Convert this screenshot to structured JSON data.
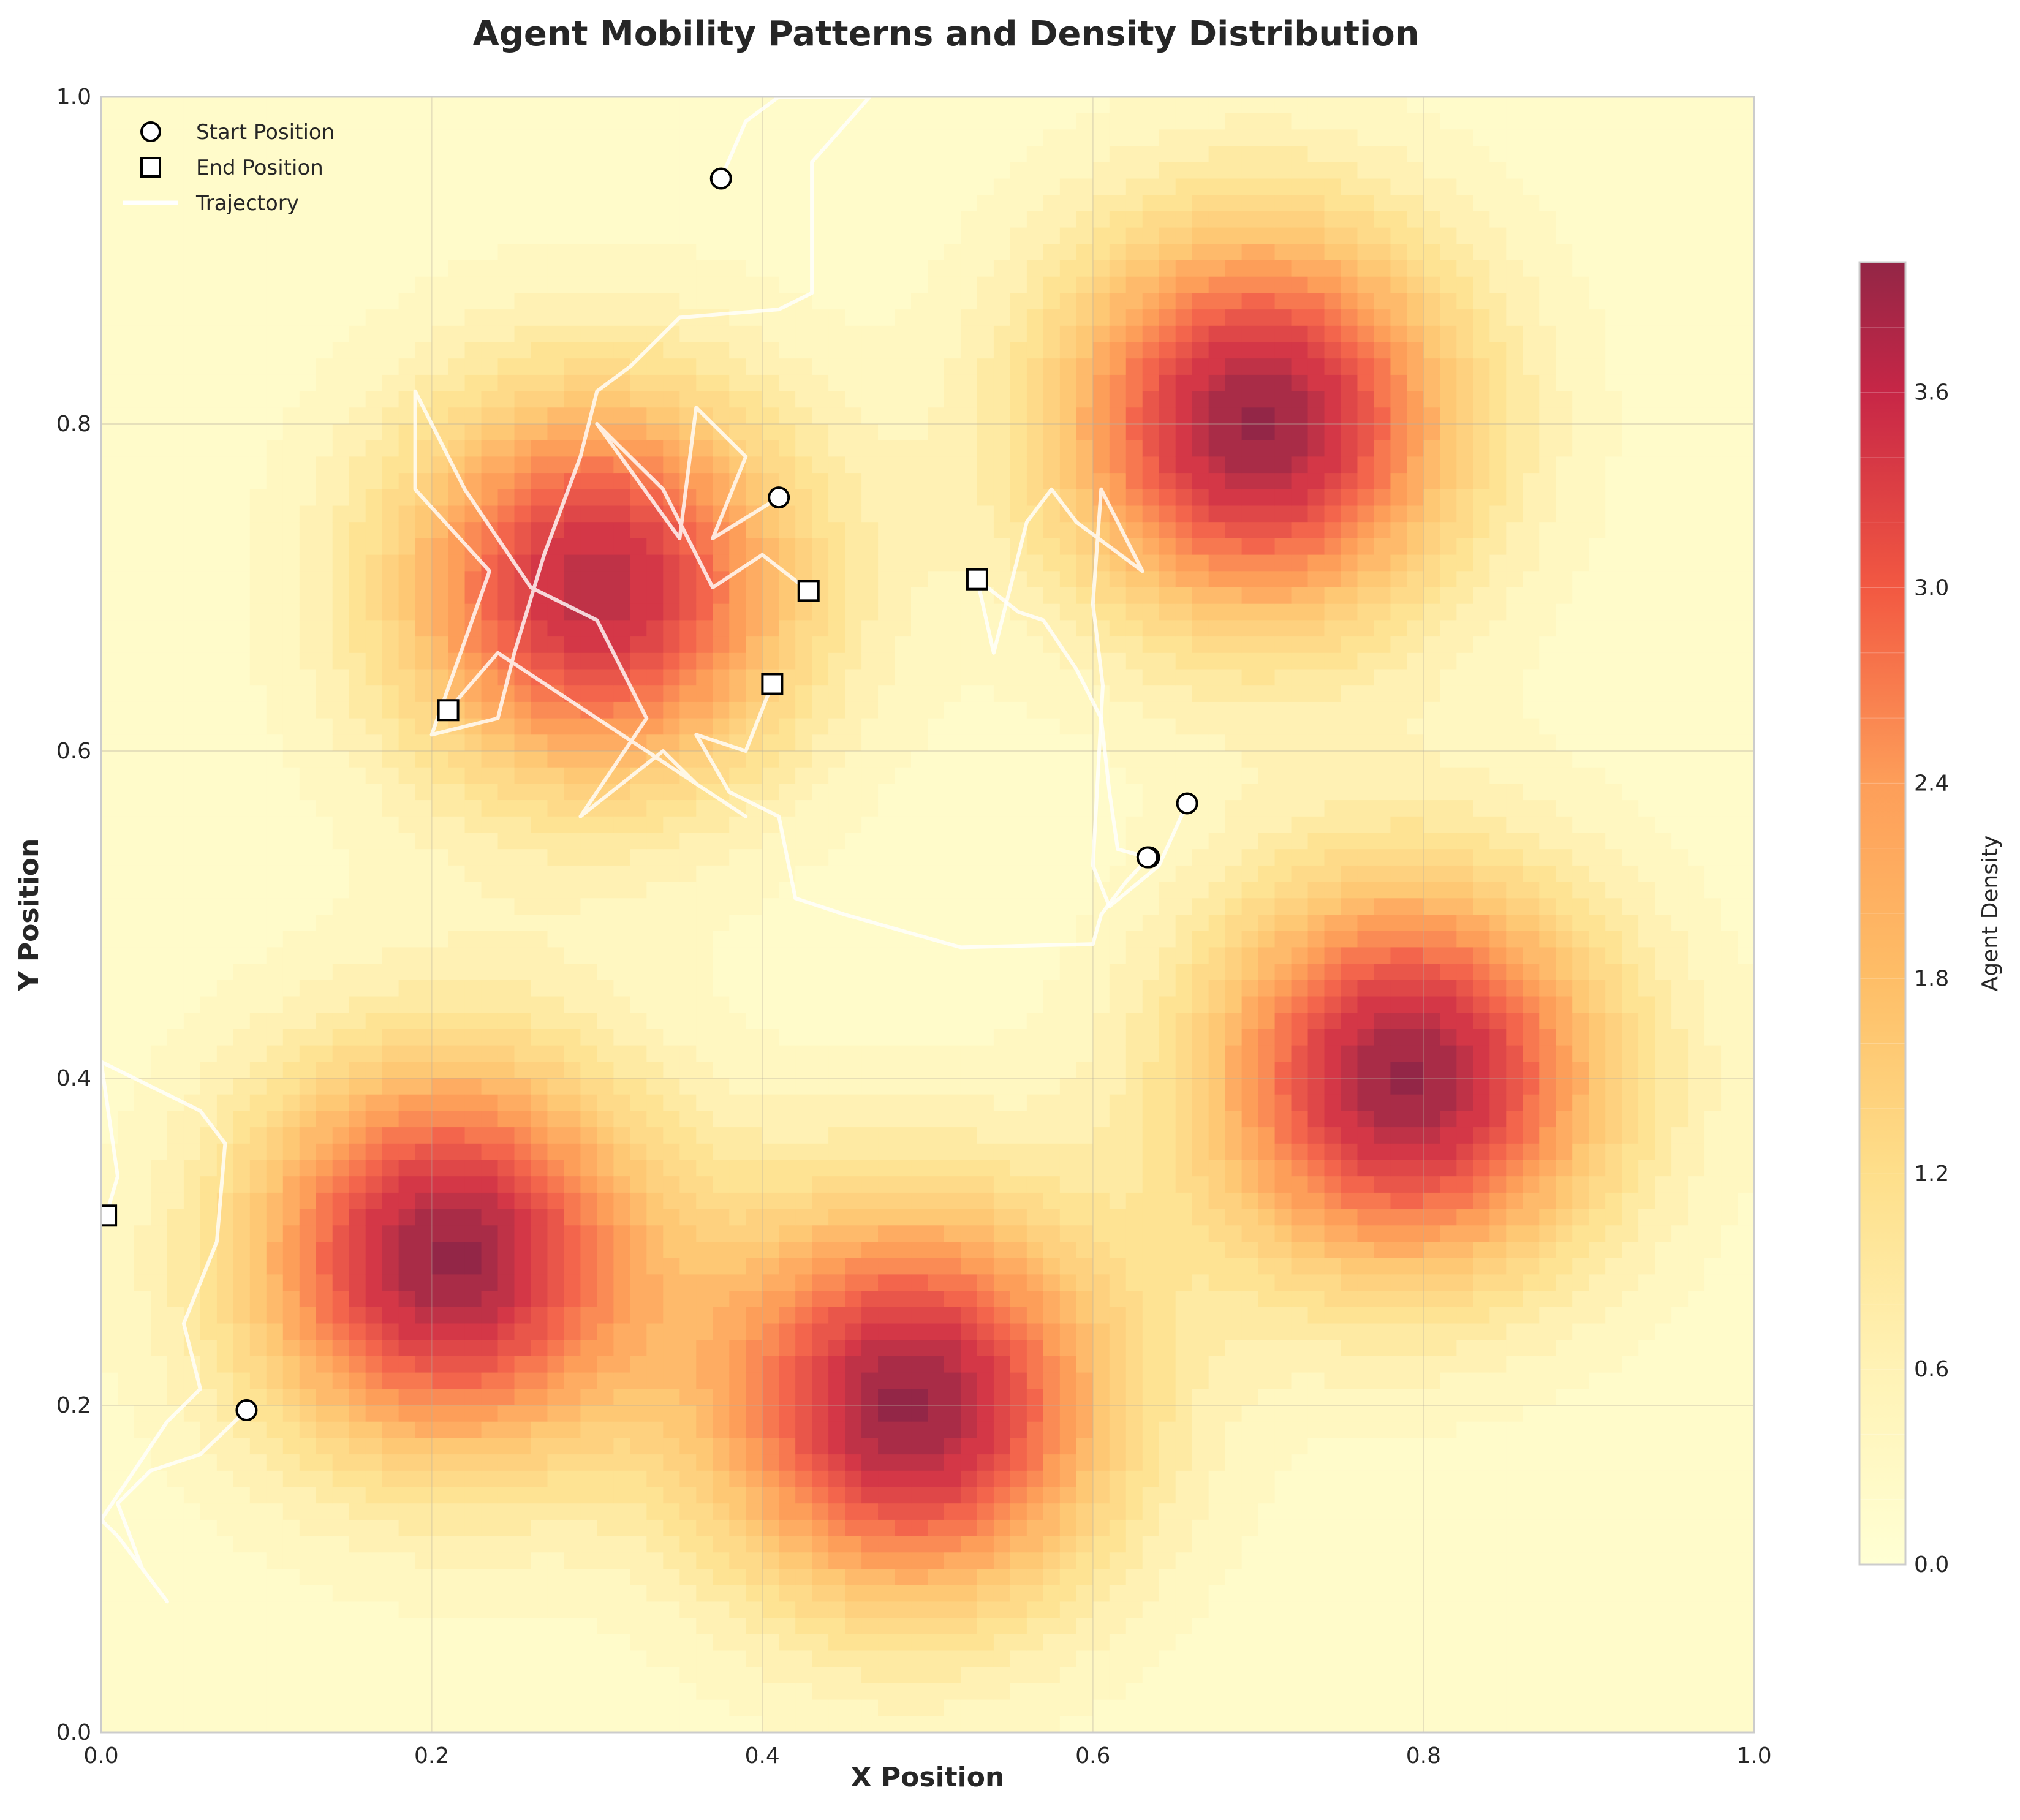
{
  "chart_data": {
    "type": "heatmap",
    "title": "Agent Mobility Patterns and Density Distribution",
    "xlabel": "X Position",
    "ylabel": "Y Position",
    "xlim": [
      0.0,
      1.0
    ],
    "ylim": [
      0.0,
      1.0
    ],
    "x_ticks": [
      0.0,
      0.2,
      0.4,
      0.6,
      0.8,
      1.0
    ],
    "y_ticks": [
      0.0,
      0.2,
      0.4,
      0.6,
      0.8,
      1.0
    ],
    "x_tick_labels": [
      "0.0",
      "0.2",
      "0.4",
      "0.6",
      "0.8",
      "1.0"
    ],
    "y_tick_labels": [
      "0.0",
      "0.2",
      "0.4",
      "0.6",
      "0.8",
      "1.0"
    ],
    "grid": true,
    "colormap": "YlOrRd",
    "density_peaks": [
      {
        "x": 0.3,
        "y": 0.7,
        "peak": 3.5
      },
      {
        "x": 0.7,
        "y": 0.8,
        "peak": 3.8
      },
      {
        "x": 0.21,
        "y": 0.29,
        "peak": 3.8
      },
      {
        "x": 0.49,
        "y": 0.2,
        "peak": 3.8
      },
      {
        "x": 0.79,
        "y": 0.4,
        "peak": 3.8
      }
    ],
    "colorbar": {
      "label": "Agent Density",
      "min": 0.0,
      "max": 4.0,
      "ticks": [
        0.0,
        0.6,
        1.2,
        1.8,
        2.4,
        3.0,
        3.6
      ],
      "tick_labels": [
        "0.0",
        "0.6",
        "1.2",
        "1.8",
        "2.4",
        "3.0",
        "3.6"
      ],
      "level_step": 0.2
    },
    "legend": {
      "placement": "top-left",
      "entries": [
        {
          "label": "Start Position",
          "marker": "circle"
        },
        {
          "label": "End Position",
          "marker": "square"
        },
        {
          "label": "Trajectory",
          "marker": "line"
        }
      ]
    },
    "trajectories": [
      {
        "start": {
          "x": 0.375,
          "y": 0.95
        },
        "end": {
          "x": 0.21,
          "y": 0.625
        },
        "points": [
          [
            0.375,
            0.95
          ],
          [
            0.39,
            0.985
          ],
          [
            0.41,
            1.0
          ],
          [
            0.465,
            1.0
          ],
          [
            0.43,
            0.96
          ],
          [
            0.43,
            0.88
          ],
          [
            0.41,
            0.87
          ],
          [
            0.35,
            0.865
          ],
          [
            0.32,
            0.835
          ],
          [
            0.3,
            0.82
          ],
          [
            0.29,
            0.78
          ],
          [
            0.268,
            0.72
          ],
          [
            0.25,
            0.66
          ],
          [
            0.24,
            0.62
          ],
          [
            0.2,
            0.61
          ],
          [
            0.235,
            0.71
          ],
          [
            0.19,
            0.76
          ],
          [
            0.19,
            0.82
          ],
          [
            0.22,
            0.76
          ],
          [
            0.26,
            0.7
          ],
          [
            0.3,
            0.68
          ],
          [
            0.33,
            0.62
          ],
          [
            0.29,
            0.56
          ],
          [
            0.34,
            0.6
          ],
          [
            0.36,
            0.58
          ],
          [
            0.39,
            0.56
          ],
          [
            0.3,
            0.62
          ],
          [
            0.24,
            0.66
          ],
          [
            0.21,
            0.625
          ]
        ]
      },
      {
        "start": {
          "x": 0.41,
          "y": 0.755
        },
        "end": {
          "x": 0.428,
          "y": 0.698
        },
        "points": [
          [
            0.41,
            0.755
          ],
          [
            0.37,
            0.73
          ],
          [
            0.39,
            0.78
          ],
          [
            0.36,
            0.81
          ],
          [
            0.35,
            0.73
          ],
          [
            0.3,
            0.8
          ],
          [
            0.34,
            0.76
          ],
          [
            0.37,
            0.7
          ],
          [
            0.4,
            0.72
          ],
          [
            0.428,
            0.698
          ]
        ]
      },
      {
        "start": {
          "x": 0.088,
          "y": 0.197
        },
        "end": {
          "x": 0.003,
          "y": 0.316
        },
        "points": [
          [
            0.088,
            0.197
          ],
          [
            0.06,
            0.17
          ],
          [
            0.03,
            0.16
          ],
          [
            0.01,
            0.14
          ],
          [
            0.025,
            0.1
          ],
          [
            0.04,
            0.08
          ],
          [
            0.01,
            0.12
          ],
          [
            0.0,
            0.13
          ],
          [
            0.02,
            0.16
          ],
          [
            0.04,
            0.19
          ],
          [
            0.06,
            0.21
          ],
          [
            0.05,
            0.25
          ],
          [
            0.07,
            0.3
          ],
          [
            0.075,
            0.36
          ],
          [
            0.06,
            0.38
          ],
          [
            0.0,
            0.41
          ],
          [
            0.01,
            0.34
          ],
          [
            0.003,
            0.316
          ]
        ]
      },
      {
        "start": {
          "x": 0.657,
          "y": 0.568
        },
        "end": {
          "x": 0.53,
          "y": 0.705
        },
        "points": [
          [
            0.657,
            0.568
          ],
          [
            0.64,
            0.53
          ],
          [
            0.61,
            0.505
          ],
          [
            0.6,
            0.53
          ],
          [
            0.606,
            0.64
          ],
          [
            0.6,
            0.69
          ],
          [
            0.605,
            0.76
          ],
          [
            0.63,
            0.71
          ],
          [
            0.59,
            0.74
          ],
          [
            0.575,
            0.76
          ],
          [
            0.56,
            0.74
          ],
          [
            0.55,
            0.7
          ],
          [
            0.54,
            0.66
          ],
          [
            0.53,
            0.705
          ]
        ]
      },
      {
        "start": {
          "x": 0.634,
          "y": 0.535
        },
        "end": {
          "x": 0.406,
          "y": 0.641
        },
        "points": [
          [
            0.634,
            0.535
          ],
          [
            0.62,
            0.52
          ],
          [
            0.605,
            0.5
          ],
          [
            0.6,
            0.482
          ],
          [
            0.52,
            0.48
          ],
          [
            0.45,
            0.5
          ],
          [
            0.42,
            0.51
          ],
          [
            0.41,
            0.56
          ],
          [
            0.38,
            0.575
          ],
          [
            0.36,
            0.61
          ],
          [
            0.39,
            0.6
          ],
          [
            0.406,
            0.641
          ]
        ]
      },
      {
        "start": {
          "x": 0.633,
          "y": 0.535
        },
        "end": {
          "x": 0.53,
          "y": 0.705
        },
        "points": [
          [
            0.633,
            0.535
          ],
          [
            0.615,
            0.54
          ],
          [
            0.61,
            0.575
          ],
          [
            0.605,
            0.62
          ],
          [
            0.59,
            0.65
          ],
          [
            0.57,
            0.68
          ],
          [
            0.555,
            0.685
          ],
          [
            0.53,
            0.705
          ]
        ]
      }
    ]
  }
}
